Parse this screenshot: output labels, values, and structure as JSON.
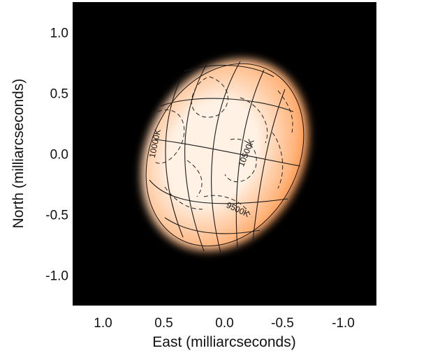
{
  "chart_data": {
    "type": "image",
    "xlabel": "East (milliarcseconds)",
    "ylabel": "North (milliarcseconds)",
    "x_ticks": [
      "1.0",
      "0.5",
      "0.0",
      "-0.5",
      "-1.0"
    ],
    "x_tick_values": [
      1.0,
      0.5,
      0.0,
      -0.5,
      -1.0
    ],
    "y_ticks": [
      "1.0",
      "0.5",
      "0.0",
      "-0.5",
      "-1.0"
    ],
    "y_tick_values": [
      1.0,
      0.5,
      0.0,
      -0.5,
      -1.0
    ],
    "xlim": [
      1.25,
      -1.25
    ],
    "ylim": [
      -1.25,
      1.25
    ],
    "background_color": "#000000",
    "star_colors": {
      "limb": "#ff8a3a",
      "mid": "#ffb37a",
      "core": "#fff1e4"
    },
    "contour_labels": [
      {
        "text": "10000K",
        "x": 0.55,
        "y": 0.08,
        "angle": -78
      },
      {
        "text": "10500K",
        "x": -0.2,
        "y": 0.0,
        "angle": -68
      },
      {
        "text": "9500K",
        "x": -0.1,
        "y": -0.48,
        "angle": 25
      }
    ]
  }
}
